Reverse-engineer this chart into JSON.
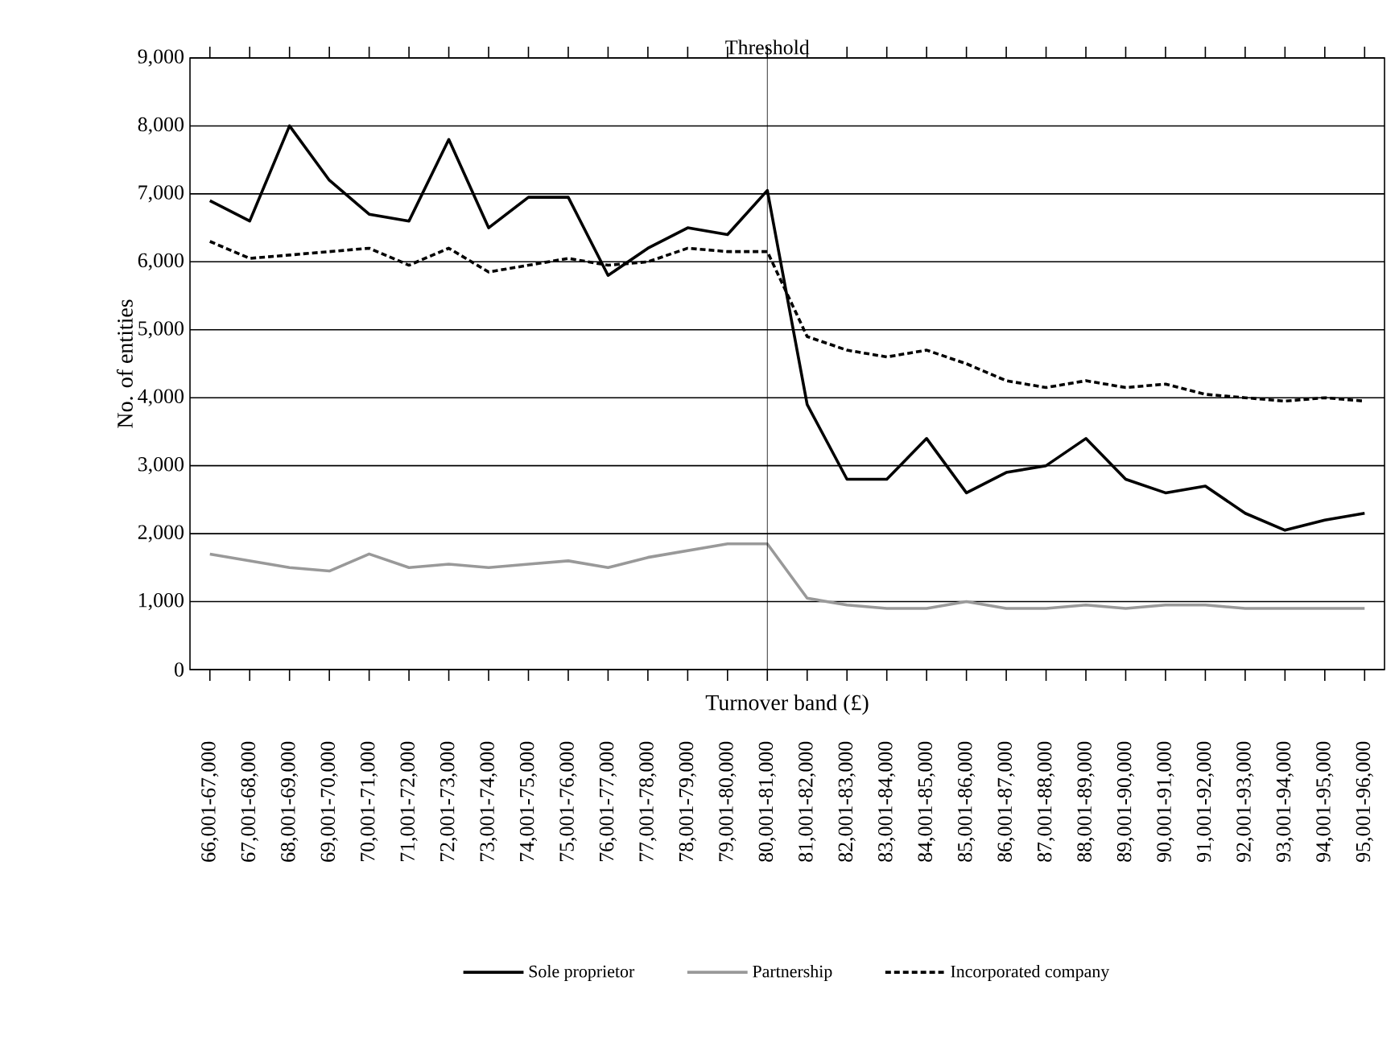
{
  "chart_data": {
    "type": "line",
    "xlabel": "Turnover band (£)",
    "ylabel": "No. of entities",
    "categories": [
      "66,001-67,000",
      "67,001-68,000",
      "68,001-69,000",
      "69,001-70,000",
      "70,001-71,000",
      "71,001-72,000",
      "72,001-73,000",
      "73,001-74,000",
      "74,001-75,000",
      "75,001-76,000",
      "76,001-77,000",
      "77,001-78,000",
      "78,001-79,000",
      "79,001-80,000",
      "80,001-81,000",
      "81,001-82,000",
      "82,001-83,000",
      "83,001-84,000",
      "84,001-85,000",
      "85,001-86,000",
      "86,001-87,000",
      "87,001-88,000",
      "88,001-89,000",
      "89,001-90,000",
      "90,001-91,000",
      "91,001-92,000",
      "92,001-93,000",
      "93,001-94,000",
      "94,001-95,000",
      "95,001-96,000"
    ],
    "series": [
      {
        "name": "Sole proprietor",
        "color": "#000000",
        "line_style": "solid",
        "values": [
          6900,
          6600,
          8000,
          7200,
          6700,
          6600,
          7800,
          6500,
          6950,
          6950,
          5800,
          6200,
          6500,
          6400,
          7050,
          3900,
          2800,
          2800,
          3400,
          2600,
          2900,
          3000,
          3400,
          2800,
          2600,
          2700,
          2300,
          2050,
          2200,
          2300
        ]
      },
      {
        "name": "Partnership",
        "color": "#999999",
        "line_style": "solid",
        "values": [
          1700,
          1600,
          1500,
          1450,
          1700,
          1500,
          1550,
          1500,
          1550,
          1600,
          1500,
          1650,
          1750,
          1850,
          1850,
          1050,
          950,
          900,
          900,
          1000,
          900,
          900,
          950,
          900,
          950,
          950,
          900,
          900,
          900,
          900
        ]
      },
      {
        "name": "Incorporated company",
        "color": "#000000",
        "line_style": "dashed",
        "values": [
          6300,
          6050,
          6100,
          6150,
          6200,
          5950,
          6200,
          5850,
          5950,
          6050,
          5950,
          6000,
          6200,
          6150,
          6150,
          4900,
          4700,
          4600,
          4700,
          4500,
          4250,
          4150,
          4250,
          4150,
          4200,
          4050,
          4000,
          3950,
          4000,
          3950
        ]
      }
    ],
    "ylim": [
      0,
      9000
    ],
    "yticks": [
      {
        "value": 0,
        "label": "0"
      },
      {
        "value": 1000,
        "label": "1,000"
      },
      {
        "value": 2000,
        "label": "2,000"
      },
      {
        "value": 3000,
        "label": "3,000"
      },
      {
        "value": 4000,
        "label": "4,000"
      },
      {
        "value": 5000,
        "label": "5,000"
      },
      {
        "value": 6000,
        "label": "6,000"
      },
      {
        "value": 7000,
        "label": "7,000"
      },
      {
        "value": 8000,
        "label": "8,000"
      },
      {
        "value": 9000,
        "label": "9,000"
      }
    ],
    "grid": "y",
    "legend": "bottom",
    "marker": "none",
    "ref_lines": [
      {
        "axis": "x",
        "value": "80,001-81,000",
        "label": "Threshold",
        "color": "#000000"
      }
    ]
  }
}
